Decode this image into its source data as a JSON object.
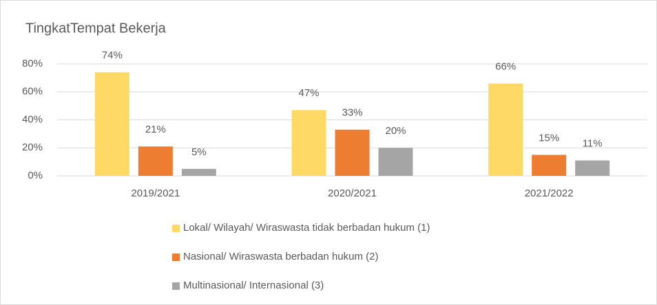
{
  "chart_data": {
    "type": "bar",
    "title": "TingkatTempat Bekerja",
    "categories": [
      "2019/2021",
      "2020/2021",
      "2021/2022"
    ],
    "series": [
      {
        "name": "Lokal/ Wilayah/ Wiraswasta tidak berbadan hukum (1)",
        "color": "#ffd966",
        "values": [
          74,
          47,
          66
        ],
        "value_labels": [
          "74%",
          "47%",
          "66%"
        ]
      },
      {
        "name": "Nasional/ Wiraswasta berbadan hukum (2)",
        "color": "#ed7d31",
        "values": [
          21,
          33,
          15
        ],
        "value_labels": [
          "21%",
          "33%",
          "15%"
        ]
      },
      {
        "name": "Multinasional/ Internasional (3)",
        "color": "#a5a5a5",
        "values": [
          5,
          20,
          11
        ],
        "value_labels": [
          "5%",
          "20%",
          "11%"
        ]
      }
    ],
    "ylim": [
      0,
      80
    ],
    "yticks": [
      {
        "value": 0,
        "label": "0%"
      },
      {
        "value": 20,
        "label": "20%"
      },
      {
        "value": 40,
        "label": "40%"
      },
      {
        "value": 60,
        "label": "60%"
      },
      {
        "value": 80,
        "label": "80%"
      }
    ],
    "grid": true,
    "legend": "bottom"
  }
}
